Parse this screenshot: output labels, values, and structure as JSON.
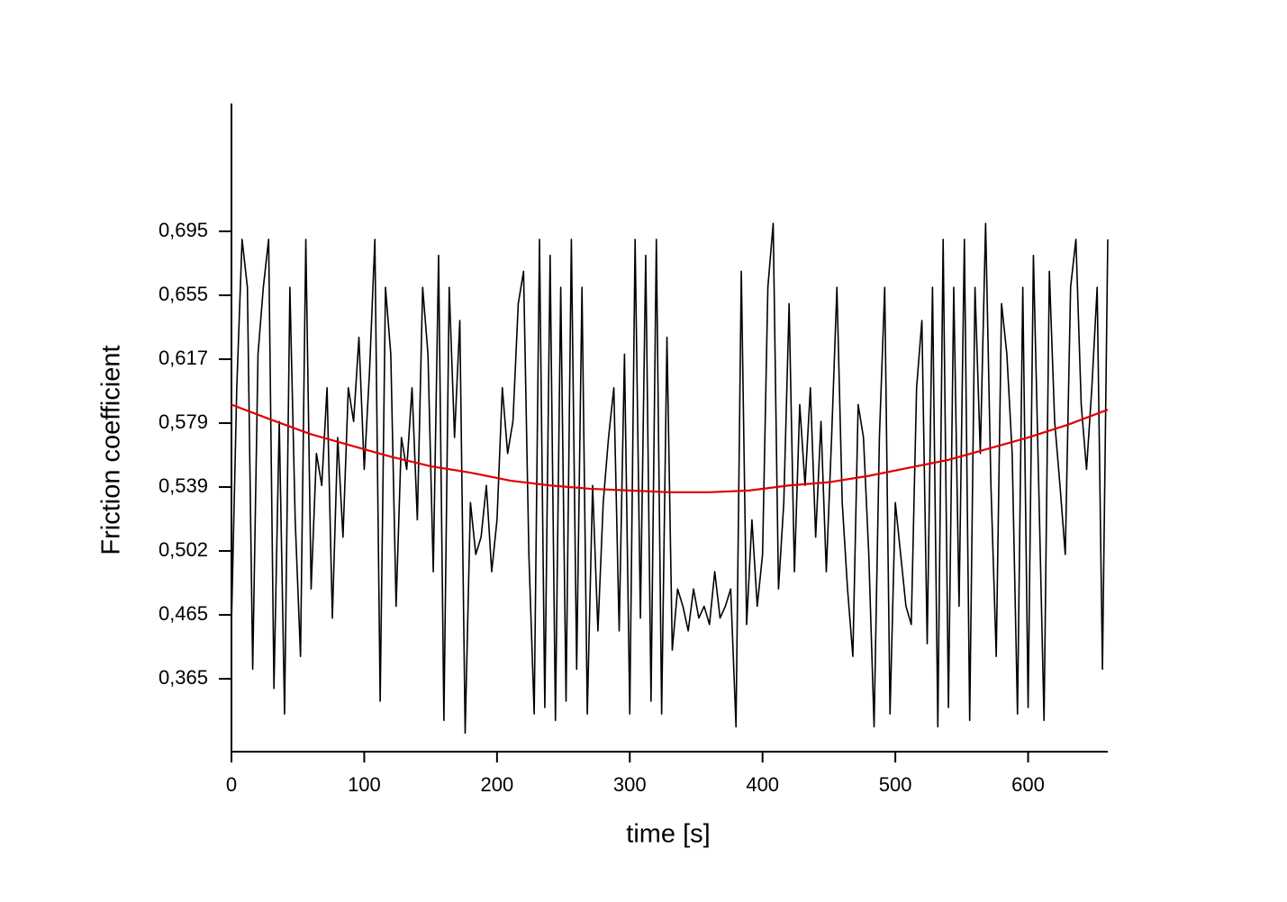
{
  "chart_data": {
    "type": "line",
    "xlabel": "time [s]",
    "ylabel": "Friction coefficient",
    "xlim": [
      0,
      660
    ],
    "xticks": [
      0,
      100,
      200,
      300,
      400,
      500,
      600
    ],
    "ylim": [
      0.251,
      0.775
    ],
    "yticks": [
      {
        "value": 0.365,
        "label": "0,365"
      },
      {
        "value": 0.465,
        "label": "0,465"
      },
      {
        "value": 0.502,
        "label": "0,502"
      },
      {
        "value": 0.539,
        "label": "0,539"
      },
      {
        "value": 0.579,
        "label": "0,579"
      },
      {
        "value": 0.617,
        "label": "0,617"
      },
      {
        "value": 0.655,
        "label": "0,655"
      },
      {
        "value": 0.695,
        "label": "0,695"
      }
    ],
    "series": [
      {
        "color": "#000000",
        "x": [
          0,
          4,
          8,
          12,
          16,
          20,
          24,
          28,
          32,
          36,
          40,
          44,
          48,
          52,
          56,
          60,
          64,
          68,
          72,
          76,
          80,
          84,
          88,
          92,
          96,
          100,
          104,
          108,
          112,
          116,
          120,
          124,
          128,
          132,
          136,
          140,
          144,
          148,
          152,
          156,
          160,
          164,
          168,
          172,
          176,
          180,
          184,
          188,
          192,
          196,
          200,
          204,
          208,
          212,
          216,
          220,
          224,
          228,
          232,
          236,
          240,
          244,
          248,
          252,
          256,
          260,
          264,
          268,
          272,
          276,
          280,
          284,
          288,
          292,
          296,
          300,
          304,
          308,
          312,
          316,
          320,
          324,
          328,
          332,
          336,
          340,
          344,
          348,
          352,
          356,
          360,
          364,
          368,
          372,
          376,
          380,
          384,
          388,
          392,
          396,
          400,
          404,
          408,
          412,
          416,
          420,
          424,
          428,
          432,
          436,
          440,
          444,
          448,
          452,
          456,
          460,
          464,
          468,
          472,
          476,
          480,
          484,
          488,
          492,
          496,
          500,
          504,
          508,
          512,
          516,
          520,
          524,
          528,
          532,
          536,
          540,
          544,
          548,
          552,
          556,
          560,
          564,
          568,
          572,
          576,
          580,
          584,
          588,
          592,
          596,
          600,
          604,
          608,
          612,
          616,
          620,
          624,
          628,
          632,
          636,
          640,
          644,
          648,
          652,
          656,
          660
        ],
        "values": [
          0.45,
          0.6,
          0.69,
          0.66,
          0.38,
          0.62,
          0.66,
          0.69,
          0.35,
          0.58,
          0.31,
          0.66,
          0.52,
          0.4,
          0.69,
          0.48,
          0.56,
          0.54,
          0.6,
          0.46,
          0.57,
          0.51,
          0.6,
          0.58,
          0.63,
          0.55,
          0.61,
          0.69,
          0.33,
          0.66,
          0.62,
          0.47,
          0.57,
          0.55,
          0.6,
          0.52,
          0.66,
          0.62,
          0.49,
          0.68,
          0.3,
          0.66,
          0.57,
          0.64,
          0.28,
          0.53,
          0.5,
          0.51,
          0.54,
          0.49,
          0.52,
          0.6,
          0.56,
          0.58,
          0.65,
          0.67,
          0.5,
          0.31,
          0.69,
          0.32,
          0.68,
          0.3,
          0.66,
          0.33,
          0.69,
          0.38,
          0.66,
          0.31,
          0.54,
          0.44,
          0.53,
          0.57,
          0.6,
          0.44,
          0.62,
          0.31,
          0.69,
          0.46,
          0.68,
          0.33,
          0.69,
          0.31,
          0.63,
          0.41,
          0.48,
          0.47,
          0.44,
          0.48,
          0.46,
          0.47,
          0.45,
          0.49,
          0.46,
          0.47,
          0.48,
          0.29,
          0.67,
          0.45,
          0.52,
          0.47,
          0.5,
          0.66,
          0.7,
          0.48,
          0.53,
          0.65,
          0.49,
          0.59,
          0.54,
          0.6,
          0.51,
          0.58,
          0.49,
          0.57,
          0.66,
          0.53,
          0.48,
          0.4,
          0.59,
          0.57,
          0.5,
          0.29,
          0.57,
          0.66,
          0.31,
          0.53,
          0.5,
          0.47,
          0.45,
          0.6,
          0.64,
          0.42,
          0.66,
          0.29,
          0.69,
          0.32,
          0.66,
          0.47,
          0.69,
          0.3,
          0.66,
          0.56,
          0.7,
          0.54,
          0.4,
          0.65,
          0.62,
          0.56,
          0.31,
          0.66,
          0.32,
          0.68,
          0.54,
          0.3,
          0.67,
          0.58,
          0.54,
          0.5,
          0.66,
          0.69,
          0.59,
          0.55,
          0.6,
          0.66,
          0.38,
          0.69
        ]
      },
      {
        "color": "#e00000",
        "x": [
          0,
          30,
          60,
          90,
          120,
          150,
          180,
          210,
          240,
          270,
          300,
          330,
          360,
          390,
          420,
          450,
          480,
          510,
          540,
          570,
          600,
          630,
          660
        ],
        "values": [
          0.59,
          0.581,
          0.572,
          0.565,
          0.558,
          0.552,
          0.548,
          0.543,
          0.54,
          0.538,
          0.537,
          0.536,
          0.536,
          0.537,
          0.54,
          0.542,
          0.546,
          0.551,
          0.556,
          0.563,
          0.57,
          0.578,
          0.587
        ]
      }
    ]
  }
}
